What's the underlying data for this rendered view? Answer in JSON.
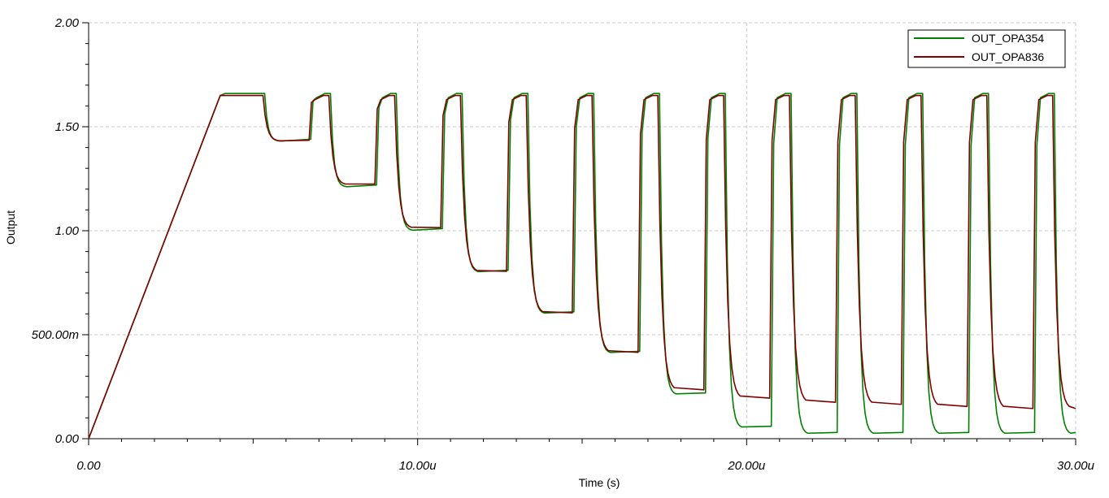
{
  "chart_data": {
    "type": "line",
    "xlabel": "Time (s)",
    "ylabel": "Output",
    "xlim": [
      0,
      30
    ],
    "ylim": [
      0,
      2
    ],
    "x_unit": "u",
    "x_ticks": [
      0,
      10,
      20,
      30
    ],
    "x_tick_labels": [
      "0.00",
      "10.00u",
      "20.00u",
      "30.00u"
    ],
    "y_ticks": [
      0,
      0.5,
      1,
      1.5,
      2
    ],
    "y_tick_labels": [
      "0.00",
      "500.00m",
      "1.00",
      "1.50",
      "2.00"
    ],
    "grid": true,
    "legend_position": "top-right",
    "ramp": {
      "start_x": 0,
      "end_x": 4,
      "high": 1.65
    },
    "pulses": {
      "period": 2,
      "rise_times": [
        7.3,
        9.3,
        11.3,
        13.3,
        15.3,
        17.3,
        19.3,
        21.3,
        23.3,
        25.3,
        27.3,
        29.3
      ],
      "fall_times": [
        5.3,
        7.3,
        9.3,
        11.3,
        13.3,
        15.3,
        17.3,
        19.3,
        21.3,
        23.3,
        25.3,
        27.3,
        29.3
      ],
      "input_rise_times": [
        6.7,
        8.7,
        10.7,
        12.7,
        14.7,
        16.7,
        18.7,
        20.7,
        22.7,
        24.7,
        26.7,
        28.7
      ]
    },
    "series": [
      {
        "name": "OUT_OPA354",
        "color": "#008000",
        "high": 1.66,
        "lows": [
          1.43,
          1.21,
          1.0,
          0.8,
          0.6,
          0.41,
          0.21,
          0.05,
          0.02,
          0.02,
          0.02,
          0.02,
          0.02
        ]
      },
      {
        "name": "OUT_OPA836",
        "color": "#800000",
        "high": 1.65,
        "lows": [
          1.43,
          1.22,
          1.01,
          0.8,
          0.6,
          0.41,
          0.23,
          0.19,
          0.17,
          0.16,
          0.15,
          0.14,
          0.14
        ]
      }
    ]
  }
}
